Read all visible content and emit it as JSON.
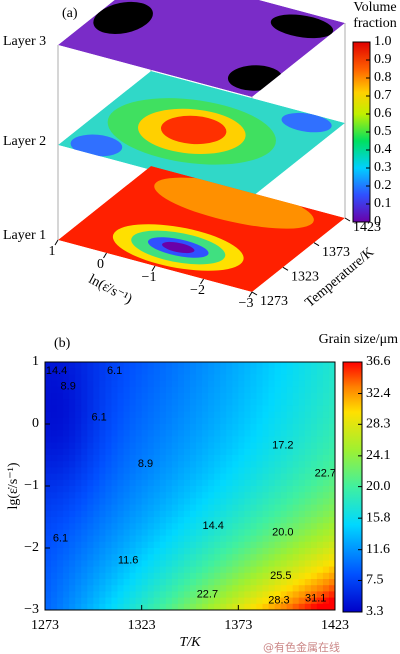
{
  "chart_data": [
    {
      "type": "layered-contour",
      "panel_label": "(a)",
      "colorbar_title": "Volume fraction",
      "layers": [
        "Layer 3",
        "Layer 2",
        "Layer 1"
      ],
      "x_label": "ln(ε̇/s⁻¹)",
      "xlim": [
        1,
        -3
      ],
      "xticks": [
        1,
        0,
        {
          "value": -1,
          "label": "−1"
        },
        {
          "value": -2,
          "label": "−2"
        },
        {
          "value": -3,
          "label": "−3"
        }
      ],
      "y_label": "Temperature/K",
      "ylim": [
        1273,
        1423
      ],
      "yticks": [
        1273,
        1323,
        1373,
        1423
      ],
      "clim": [
        0,
        1
      ],
      "cticks": [
        0,
        0.1,
        0.2,
        0.3,
        0.4,
        0.5,
        0.6,
        0.7,
        0.8,
        0.9,
        {
          "value": 1,
          "label": "1.0"
        }
      ]
    },
    {
      "type": "contour",
      "panel_label": "(b)",
      "colorbar_title": "Grain size/μm",
      "x_label": "T/K",
      "xlim": [
        1273,
        1423
      ],
      "xticks": [
        1273,
        1323,
        1373,
        1423
      ],
      "y_label": "lg(ε̇/s⁻¹)",
      "ylim": [
        -3,
        1
      ],
      "yticks": [
        {
          "value": -3,
          "label": "−3"
        },
        {
          "value": -2,
          "label": "−2"
        },
        {
          "value": -1,
          "label": "−1"
        },
        0,
        1
      ],
      "clim": [
        3.3,
        36.6
      ],
      "cticks": [
        3.3,
        7.5,
        11.6,
        15.8,
        {
          "value": 20,
          "label": "20.0"
        },
        24.1,
        28.3,
        32.4,
        36.6
      ],
      "contour_labels": [
        {
          "value": 14.4,
          "x": 1279,
          "y": 0.85
        },
        {
          "value": 8.9,
          "x": 1285,
          "y": 0.6
        },
        {
          "value": 6.1,
          "x": 1309,
          "y": 0.85
        },
        {
          "value": 6.1,
          "x": 1301,
          "y": 0.1
        },
        {
          "value": 8.9,
          "x": 1325,
          "y": -0.65
        },
        {
          "value": 17.2,
          "x": 1396,
          "y": -0.35
        },
        {
          "value": 22.7,
          "x": 1418,
          "y": -0.8
        },
        {
          "value": 6.1,
          "x": 1281,
          "y": -1.85
        },
        {
          "value": 14.4,
          "x": 1360,
          "y": -1.65
        },
        {
          "value": 20,
          "label": "20.0",
          "x": 1396,
          "y": -1.75
        },
        {
          "value": 11.6,
          "x": 1316,
          "y": -2.2
        },
        {
          "value": 25.5,
          "x": 1395,
          "y": -2.45
        },
        {
          "value": 22.7,
          "x": 1357,
          "y": -2.75
        },
        {
          "value": 28.3,
          "x": 1394,
          "y": -2.85
        },
        {
          "value": 31.1,
          "x": 1413,
          "y": -2.82
        }
      ]
    }
  ],
  "watermark": "@有色金属在线"
}
